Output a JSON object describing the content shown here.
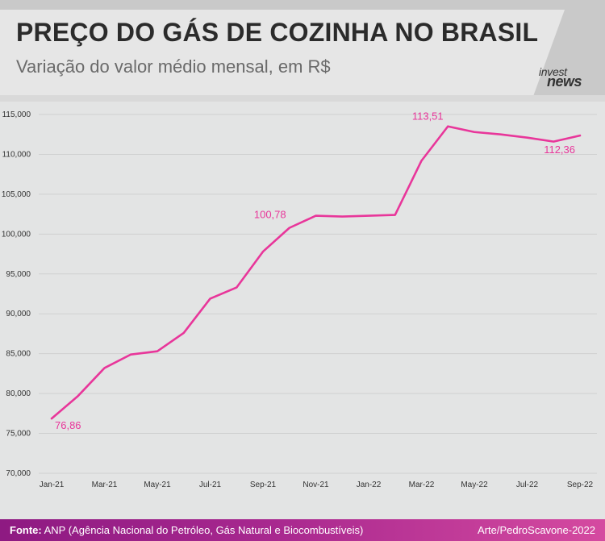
{
  "header": {
    "title": "PREÇO DO GÁS DE COZINHA NO BRASIL",
    "subtitle": "Variação do valor médio mensal, em R$",
    "logo_line1": "invest",
    "logo_line2": "news"
  },
  "footer": {
    "source_label": "Fonte:",
    "source_text": "ANP (Agência Nacional do Petróleo, Gás Natural e Biocombustíveis)",
    "credit": "Arte/PedroScavone-2022"
  },
  "colors": {
    "line": "#e8369a",
    "label": "#e8369a",
    "axis_text": "#333333",
    "grid": "#cfd0d0",
    "footer_start": "#8e1a82",
    "footer_end": "#d54aa0"
  },
  "chart_data": {
    "type": "line",
    "title": "PREÇO DO GÁS DE COZINHA NO BRASIL",
    "subtitle": "Variação do valor médio mensal, em R$",
    "xlabel": "",
    "ylabel": "",
    "ylim": [
      70,
      115
    ],
    "grid": true,
    "y_ticks": [
      {
        "value": 115,
        "label": "115,000"
      },
      {
        "value": 110,
        "label": "110,000"
      },
      {
        "value": 105,
        "label": "105,000"
      },
      {
        "value": 100,
        "label": "100,000"
      },
      {
        "value": 95,
        "label": "95,000"
      },
      {
        "value": 90,
        "label": "90,000"
      },
      {
        "value": 85,
        "label": "85,000"
      },
      {
        "value": 80,
        "label": "80,000"
      },
      {
        "value": 75,
        "label": "75,000"
      },
      {
        "value": 70,
        "label": "70,000"
      }
    ],
    "x_tick_labels": [
      "Jan-21",
      "Mar-21",
      "May-21",
      "Jul-21",
      "Sep-21",
      "Nov-21",
      "Jan-22",
      "Mar-22",
      "May-22",
      "Jul-22",
      "Sep-22"
    ],
    "x": [
      "Jan-21",
      "Feb-21",
      "Mar-21",
      "Apr-21",
      "May-21",
      "Jun-21",
      "Jul-21",
      "Aug-21",
      "Sep-21",
      "Oct-21",
      "Nov-21",
      "Dec-21",
      "Jan-22",
      "Feb-22",
      "Mar-22",
      "Apr-22",
      "May-22",
      "Jun-22",
      "Jul-22",
      "Aug-22",
      "Sep-22"
    ],
    "series": [
      {
        "values": [
          76.86,
          79.7,
          83.2,
          84.9,
          85.3,
          87.6,
          91.9,
          93.3,
          97.8,
          100.78,
          102.3,
          102.2,
          102.3,
          102.4,
          109.2,
          113.51,
          112.8,
          112.5,
          112.1,
          111.6,
          112.36
        ]
      }
    ],
    "annotations": [
      {
        "x": "Jan-21",
        "value": 76.86,
        "text": "76,86"
      },
      {
        "x": "Oct-21",
        "value": 100.78,
        "text": "100,78"
      },
      {
        "x": "Apr-22",
        "value": 113.51,
        "text": "113,51"
      },
      {
        "x": "Sep-22",
        "value": 112.36,
        "text": "112,36"
      }
    ]
  }
}
